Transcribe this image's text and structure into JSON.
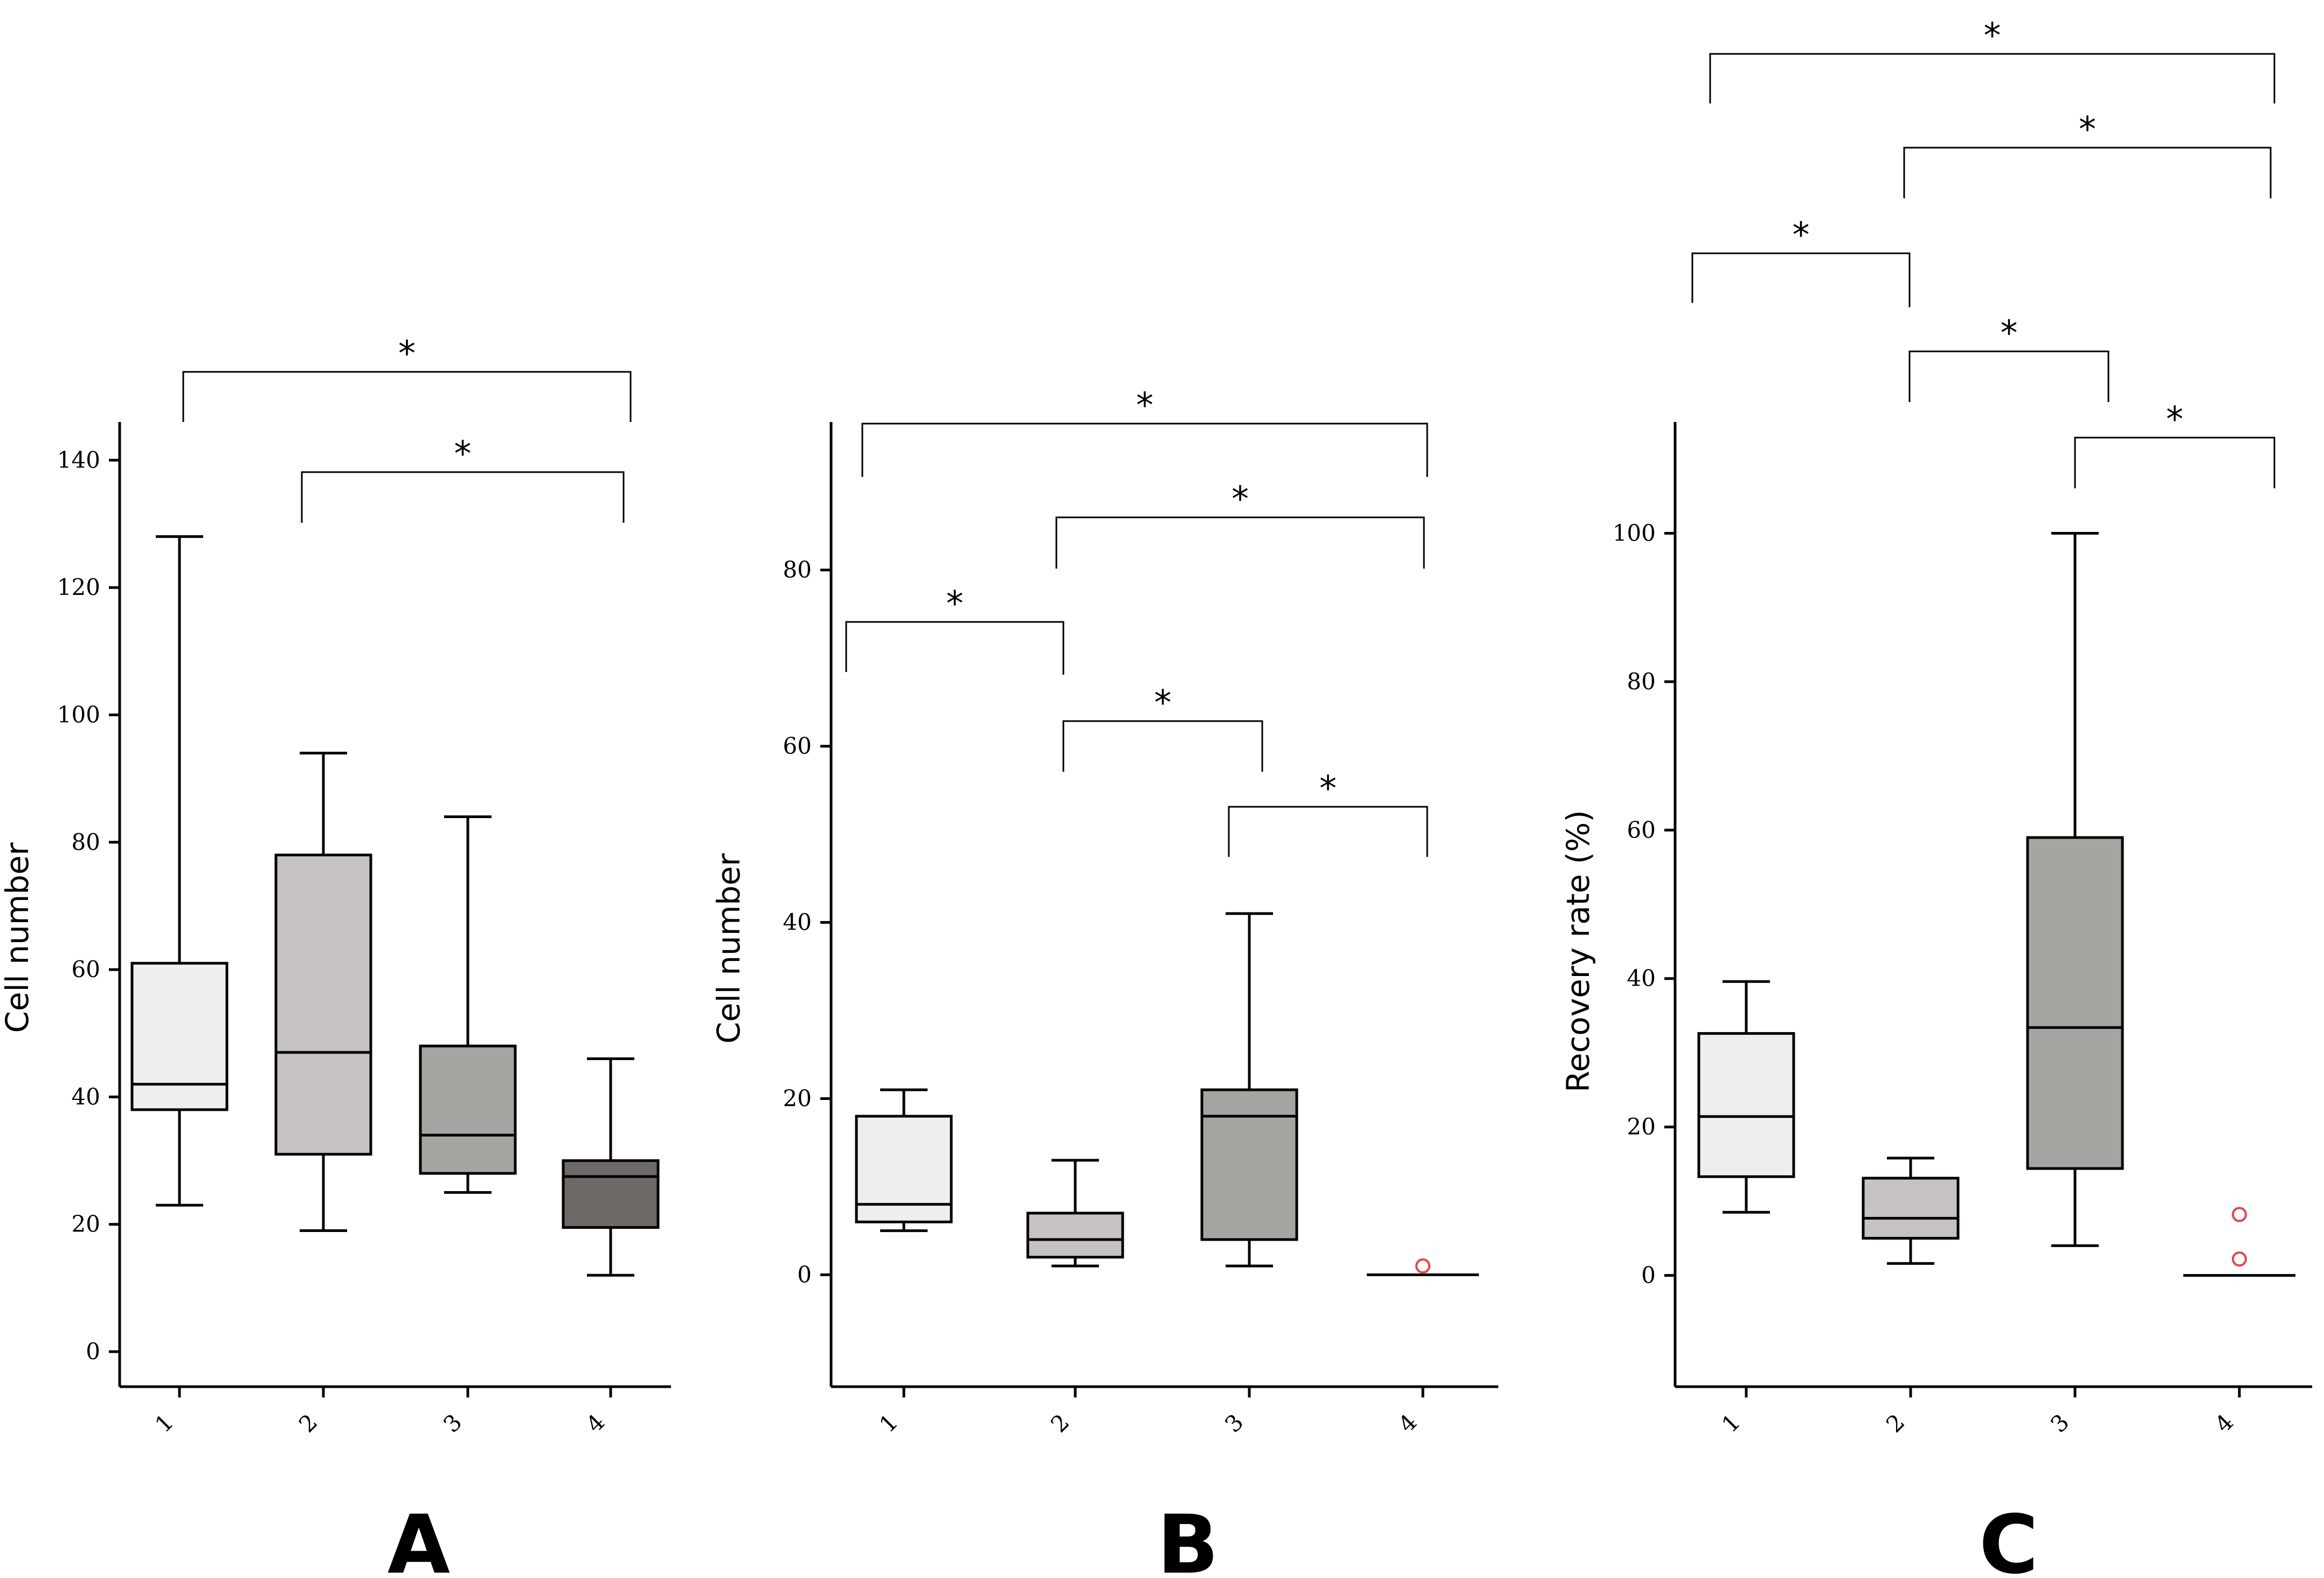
{
  "chart_data": [
    {
      "type": "box",
      "panel_label": "A",
      "ylabel": "Cell number",
      "xlabel": "",
      "categories": [
        "1",
        "2",
        "3",
        "4"
      ],
      "yticks": [
        "0",
        "20",
        "40",
        "60",
        "80",
        "100",
        "120",
        "140"
      ],
      "ylim": [
        -5.5,
        146
      ],
      "boxes": [
        {
          "category": "1",
          "whisker_low": 23,
          "q1": 38,
          "median": 42,
          "q3": 61,
          "whisker_high": 128,
          "color": "#eeeeee",
          "outliers": []
        },
        {
          "category": "2",
          "whisker_low": 19,
          "q1": 31,
          "median": 47,
          "q3": 78,
          "whisker_high": 94,
          "color": "#c6c2c1",
          "outliers": []
        },
        {
          "category": "3",
          "whisker_low": 25,
          "q1": 28,
          "median": 34,
          "q3": 48,
          "whisker_high": 84,
          "color": "#a5a6a2",
          "outliers": []
        },
        {
          "category": "4",
          "whisker_low": 12,
          "q1": 19.5,
          "median": 27.5,
          "q3": 30,
          "whisker_high": 46,
          "color": "#6e6966",
          "outliers": []
        }
      ],
      "significance": [
        {
          "from": "1",
          "to": "4",
          "label": "*"
        },
        {
          "from": "2",
          "to": "4",
          "label": "*"
        }
      ]
    },
    {
      "type": "box",
      "panel_label": "B",
      "ylabel": "Cell number",
      "xlabel": "",
      "categories": [
        "1",
        "2",
        "3",
        "4"
      ],
      "yticks": [
        "0",
        "20",
        "40",
        "60",
        "80"
      ],
      "ylim": [
        -12.7,
        96.8
      ],
      "boxes": [
        {
          "category": "1",
          "whisker_low": 5,
          "q1": 6,
          "median": 8,
          "q3": 18,
          "whisker_high": 21,
          "color": "#eeeeee",
          "outliers": []
        },
        {
          "category": "2",
          "whisker_low": 1,
          "q1": 2,
          "median": 4,
          "q3": 7,
          "whisker_high": 13,
          "color": "#c6c2c1",
          "outliers": []
        },
        {
          "category": "3",
          "whisker_low": 1,
          "q1": 4,
          "median": 18,
          "q3": 21,
          "whisker_high": 41,
          "color": "#a5a6a2",
          "outliers": []
        },
        {
          "category": "4",
          "whisker_low": 0,
          "q1": 0,
          "median": 0,
          "q3": 0,
          "whisker_high": 0,
          "color": "#6e6966",
          "outliers": [
            1
          ]
        }
      ],
      "significance": [
        {
          "from": "1",
          "to": "4",
          "label": "*"
        },
        {
          "from": "2",
          "to": "4",
          "label": "*"
        },
        {
          "from": "1",
          "to": "2",
          "label": "*"
        },
        {
          "from": "2",
          "to": "3",
          "label": "*"
        },
        {
          "from": "3",
          "to": "4",
          "label": "*"
        }
      ]
    },
    {
      "type": "box",
      "panel_label": "C",
      "ylabel": "Recovery rate (%)",
      "xlabel": "",
      "categories": [
        "1",
        "2",
        "3",
        "4"
      ],
      "yticks": [
        "0",
        "20",
        "40",
        "60",
        "80",
        "100"
      ],
      "ylim": [
        -15,
        115
      ],
      "boxes": [
        {
          "category": "1",
          "whisker_low": 8.5,
          "q1": 13.3,
          "median": 21.4,
          "q3": 32.6,
          "whisker_high": 39.6,
          "color": "#eeeeee",
          "outliers": []
        },
        {
          "category": "2",
          "whisker_low": 1.6,
          "q1": 5.0,
          "median": 7.7,
          "q3": 13.1,
          "whisker_high": 15.8,
          "color": "#c6c2c1",
          "outliers": []
        },
        {
          "category": "3",
          "whisker_low": 4.0,
          "q1": 14.4,
          "median": 33.4,
          "q3": 59.0,
          "whisker_high": 100,
          "color": "#a5a6a2",
          "outliers": []
        },
        {
          "category": "4",
          "whisker_low": 0,
          "q1": 0,
          "median": 0,
          "q3": 0,
          "whisker_high": 0,
          "color": "#6e6966",
          "outliers": [
            2.2,
            8.2
          ]
        }
      ],
      "significance": [
        {
          "from": "1",
          "to": "4",
          "label": "*"
        },
        {
          "from": "2",
          "to": "4",
          "label": "*"
        },
        {
          "from": "1",
          "to": "2",
          "label": "*"
        },
        {
          "from": "2",
          "to": "3",
          "label": "*"
        },
        {
          "from": "3",
          "to": "4",
          "label": "*"
        }
      ]
    }
  ]
}
